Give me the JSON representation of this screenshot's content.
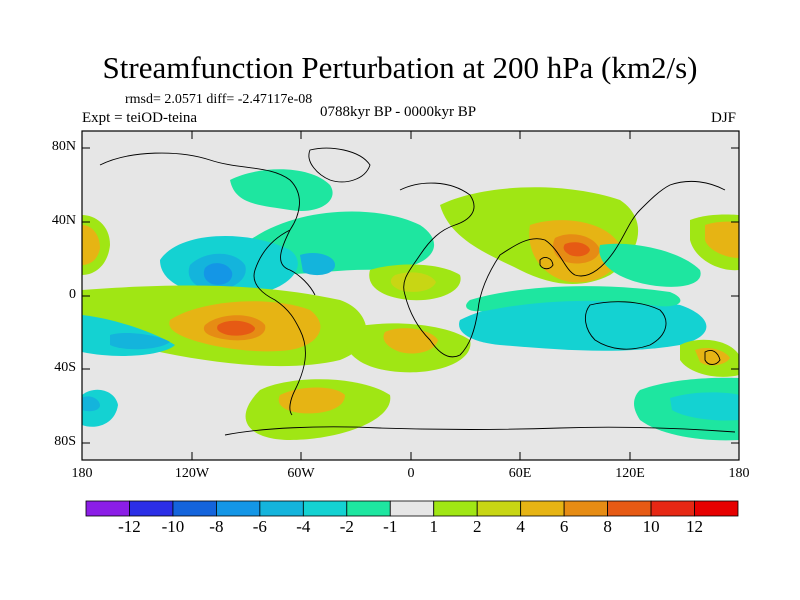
{
  "title": "Streamfunction Perturbation at 200 hPa (km2/s)",
  "stats": "rmsd= 2.0571  diff= -2.47117e-08",
  "experiment": "Expt = teiOD-teina",
  "period": "0788kyr BP - 0000kyr BP",
  "season": "DJF",
  "map": {
    "lat_labels": [
      "80N",
      "40N",
      "0",
      "40S",
      "80S"
    ],
    "lon_labels": [
      "180",
      "120W",
      "60W",
      "0",
      "60E",
      "120E",
      "180"
    ]
  },
  "colorbar": {
    "labels": [
      "-12",
      "-10",
      "-8",
      "-6",
      "-4",
      "-2",
      "-1",
      "1",
      "2",
      "4",
      "6",
      "8",
      "10",
      "12"
    ],
    "colors": [
      "#8b1ee6",
      "#2b2ee6",
      "#1464dc",
      "#1496e6",
      "#14b4dc",
      "#14d2d2",
      "#1ee6a0",
      "#e6e6e6",
      "#a0e614",
      "#c8d614",
      "#e6b414",
      "#e68c14",
      "#e65a14",
      "#e62814",
      "#e60000"
    ]
  },
  "colors": {
    "background": "#e6e6e6"
  }
}
